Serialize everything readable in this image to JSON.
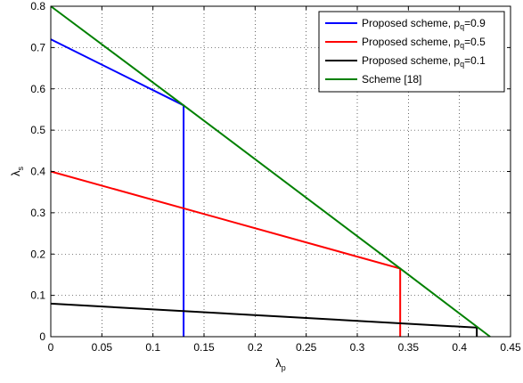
{
  "chart_data": {
    "type": "line",
    "xlabel": {
      "base": "λ",
      "sub": "p"
    },
    "ylabel": {
      "base": "λ",
      "sub": "s"
    },
    "xlim": [
      0,
      0.45
    ],
    "ylim": [
      0,
      0.8
    ],
    "xticks": [
      "0",
      "0.05",
      "0.1",
      "0.15",
      "0.2",
      "0.25",
      "0.3",
      "0.35",
      "0.4",
      "0.45"
    ],
    "yticks": [
      "0",
      "0.1",
      "0.2",
      "0.3",
      "0.4",
      "0.5",
      "0.6",
      "0.7",
      "0.8"
    ],
    "grid": true,
    "legend_position": "top-right",
    "series": [
      {
        "name": {
          "base": "Proposed scheme, p",
          "sub": "q",
          "suffix": "=0.9"
        },
        "color": "#0000ff",
        "points": [
          [
            0,
            0.72
          ],
          [
            0.13,
            0.56
          ],
          [
            0.13,
            0
          ]
        ]
      },
      {
        "name": {
          "base": "Proposed scheme, p",
          "sub": "q",
          "suffix": "=0.5"
        },
        "color": "#ff0000",
        "points": [
          [
            0,
            0.4
          ],
          [
            0.342,
            0.165
          ],
          [
            0.342,
            0
          ]
        ]
      },
      {
        "name": {
          "base": "Proposed scheme, p",
          "sub": "q",
          "suffix": "=0.1"
        },
        "color": "#000000",
        "points": [
          [
            0,
            0.08
          ],
          [
            0.417,
            0.022
          ],
          [
            0.417,
            0
          ]
        ]
      },
      {
        "name": {
          "base": "Scheme [18]",
          "sub": "",
          "suffix": ""
        },
        "color": "#008000",
        "points": [
          [
            0,
            0.8
          ],
          [
            0.13,
            0.56
          ],
          [
            0.342,
            0.165
          ],
          [
            0.43,
            0
          ]
        ]
      }
    ]
  }
}
